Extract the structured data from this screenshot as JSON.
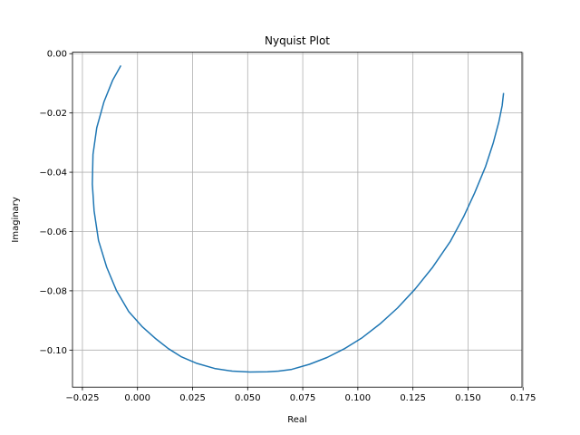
{
  "chart_data": {
    "type": "line",
    "title": "Nyquist Plot",
    "xlabel": "Real",
    "ylabel": "Imaginary",
    "xlim": [
      -0.0295,
      0.1745
    ],
    "ylim": [
      -0.1125,
      0.0005
    ],
    "xticks": [
      -0.025,
      0.0,
      0.025,
      0.05,
      0.075,
      0.1,
      0.125,
      0.15,
      0.175
    ],
    "xtick_labels": [
      "−0.025",
      "0.000",
      "0.025",
      "0.050",
      "0.075",
      "0.100",
      "0.125",
      "0.150",
      "0.175"
    ],
    "yticks": [
      0.0,
      -0.02,
      -0.04,
      -0.06,
      -0.08,
      -0.1
    ],
    "ytick_labels": [
      "0.00",
      "−0.02",
      "−0.04",
      "−0.06",
      "−0.08",
      "−0.10"
    ],
    "grid": true,
    "series": [
      {
        "color": "#1f77b4",
        "x": [
          -0.0077,
          -0.0113,
          -0.0152,
          -0.0185,
          -0.0202,
          -0.0205,
          -0.0197,
          -0.0177,
          -0.014,
          -0.0095,
          -0.004,
          0.002,
          0.008,
          0.014,
          0.02,
          0.027,
          0.035,
          0.043,
          0.051,
          0.059,
          0.064,
          0.07,
          0.078,
          0.086,
          0.094,
          0.102,
          0.11,
          0.118,
          0.126,
          0.134,
          0.142,
          0.148,
          0.153,
          0.158,
          0.1615,
          0.164,
          0.1655,
          0.1661
        ],
        "y": [
          -0.0042,
          -0.009,
          -0.0162,
          -0.025,
          -0.034,
          -0.044,
          -0.053,
          -0.063,
          -0.072,
          -0.08,
          -0.087,
          -0.092,
          -0.096,
          -0.0995,
          -0.1023,
          -0.1045,
          -0.1062,
          -0.1071,
          -0.1074,
          -0.1073,
          -0.1071,
          -0.1065,
          -0.1048,
          -0.1025,
          -0.0995,
          -0.0958,
          -0.0912,
          -0.0858,
          -0.0794,
          -0.072,
          -0.0633,
          -0.055,
          -0.047,
          -0.038,
          -0.03,
          -0.023,
          -0.0175,
          -0.0135
        ]
      }
    ]
  }
}
